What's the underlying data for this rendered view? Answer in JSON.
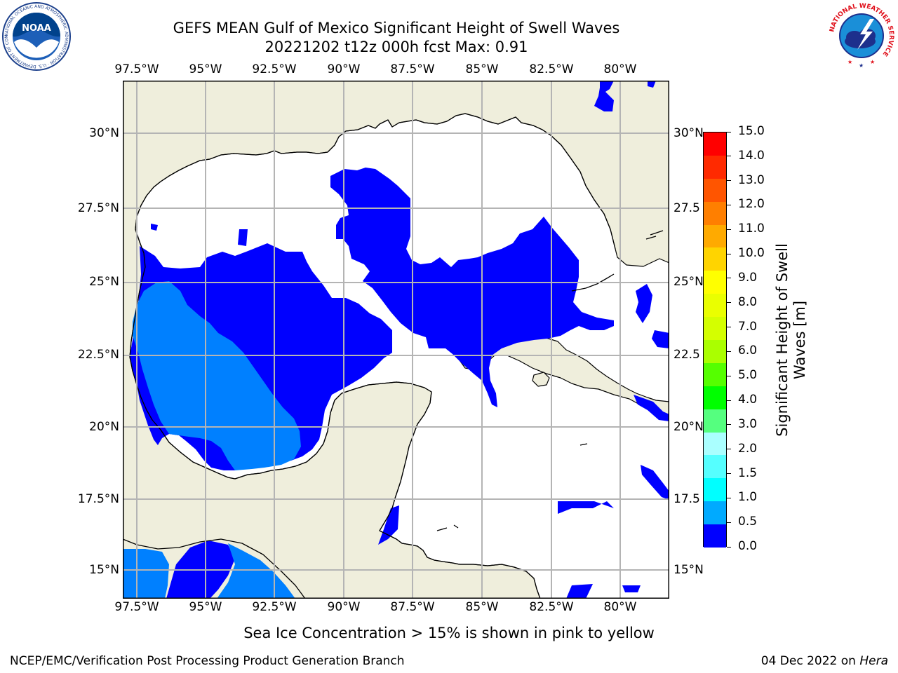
{
  "title_line1": "GEFS MEAN Gulf of Mexico Significant Height of Swell Waves",
  "title_line2": "20221202 t12z 000h fcst   Max: 0.91",
  "lon_ticks": [
    "97.5°W",
    "95°W",
    "92.5°W",
    "90°W",
    "87.5°W",
    "85°W",
    "82.5°W",
    "80°W"
  ],
  "lat_ticks_left": [
    "30°N",
    "27.5°N",
    "25°N",
    "22.5°N",
    "20°N",
    "17.5°N",
    "15°N"
  ],
  "lat_ticks_right": [
    "30°N",
    "27.5",
    "25°N",
    "22.5",
    "20°N",
    "17.5",
    "15°N"
  ],
  "colorbar": {
    "label": "Significant Height of Swell Waves [m]",
    "label_line1": "Significant Height of Swell",
    "label_line2": "Waves [m]",
    "ticks": [
      "15.0",
      "14.0",
      "13.0",
      "12.0",
      "11.0",
      "10.0",
      "9.0",
      "8.0",
      "7.0",
      "6.0",
      "5.0",
      "4.0",
      "3.0",
      "2.0",
      "1.5",
      "1.0",
      "0.5",
      "0.0"
    ],
    "colors": [
      "#ff0000",
      "#ff2a00",
      "#ff5500",
      "#ff7f00",
      "#ffaa00",
      "#ffd400",
      "#ffff00",
      "#eaff00",
      "#d4ff00",
      "#aaff00",
      "#55ff00",
      "#00ff00",
      "#55ff7f",
      "#aaffff",
      "#55ffff",
      "#00ffff",
      "#00aaff",
      "#0000ff"
    ]
  },
  "colors": {
    "land": "#efeedc",
    "swell_low": "#0000ff",
    "swell_mid": "#0080ff",
    "grid": "#b4b4b4"
  },
  "sea_ice_note": "Sea Ice Concentration > 15% is shown in pink to yellow",
  "footer_left": "NCEP/EMC/Verification Post Processing Product Generation Branch",
  "footer_date": "04 Dec 2022 on ",
  "footer_machine": "Hera",
  "logos": {
    "noaa": {
      "text": "NOAA",
      "ring_text": "NATIONAL OCEANIC AND ATMOSPHERIC ADMINISTRATION · U.S. DEPARTMENT OF COMMERCE"
    },
    "nws": {
      "ring_text": "NATIONAL WEATHER SERVICE"
    }
  }
}
